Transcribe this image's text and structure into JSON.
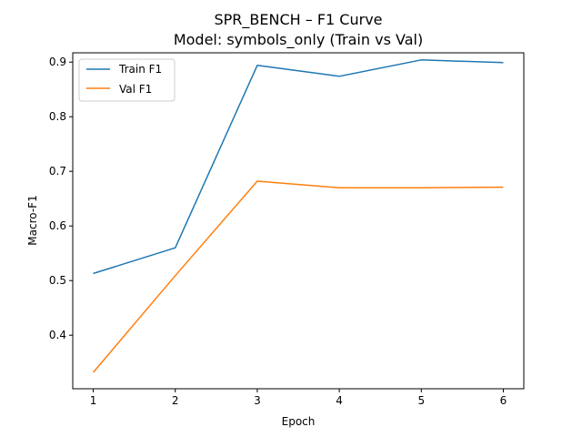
{
  "chart_data": {
    "type": "line",
    "title": "SPR_BENCH – F1 Curve",
    "subtitle": "Model: symbols_only (Train vs Val)",
    "xlabel": "Epoch",
    "ylabel": "Macro-F1",
    "x": [
      1,
      2,
      3,
      4,
      5,
      6
    ],
    "x_ticks": [
      1,
      2,
      3,
      4,
      5,
      6
    ],
    "y_ticks": [
      0.4,
      0.5,
      0.6,
      0.7,
      0.8,
      0.9
    ],
    "xlim": [
      0.75,
      6.25
    ],
    "ylim": [
      0.302,
      0.917
    ],
    "grid": false,
    "legend_position": "top-left",
    "series": [
      {
        "name": "Train F1",
        "color": "#1f77b4",
        "values": [
          0.513,
          0.56,
          0.894,
          0.874,
          0.904,
          0.899
        ]
      },
      {
        "name": "Val F1",
        "color": "#ff7f0e",
        "values": [
          0.332,
          0.509,
          0.682,
          0.67,
          0.67,
          0.671
        ]
      }
    ]
  }
}
